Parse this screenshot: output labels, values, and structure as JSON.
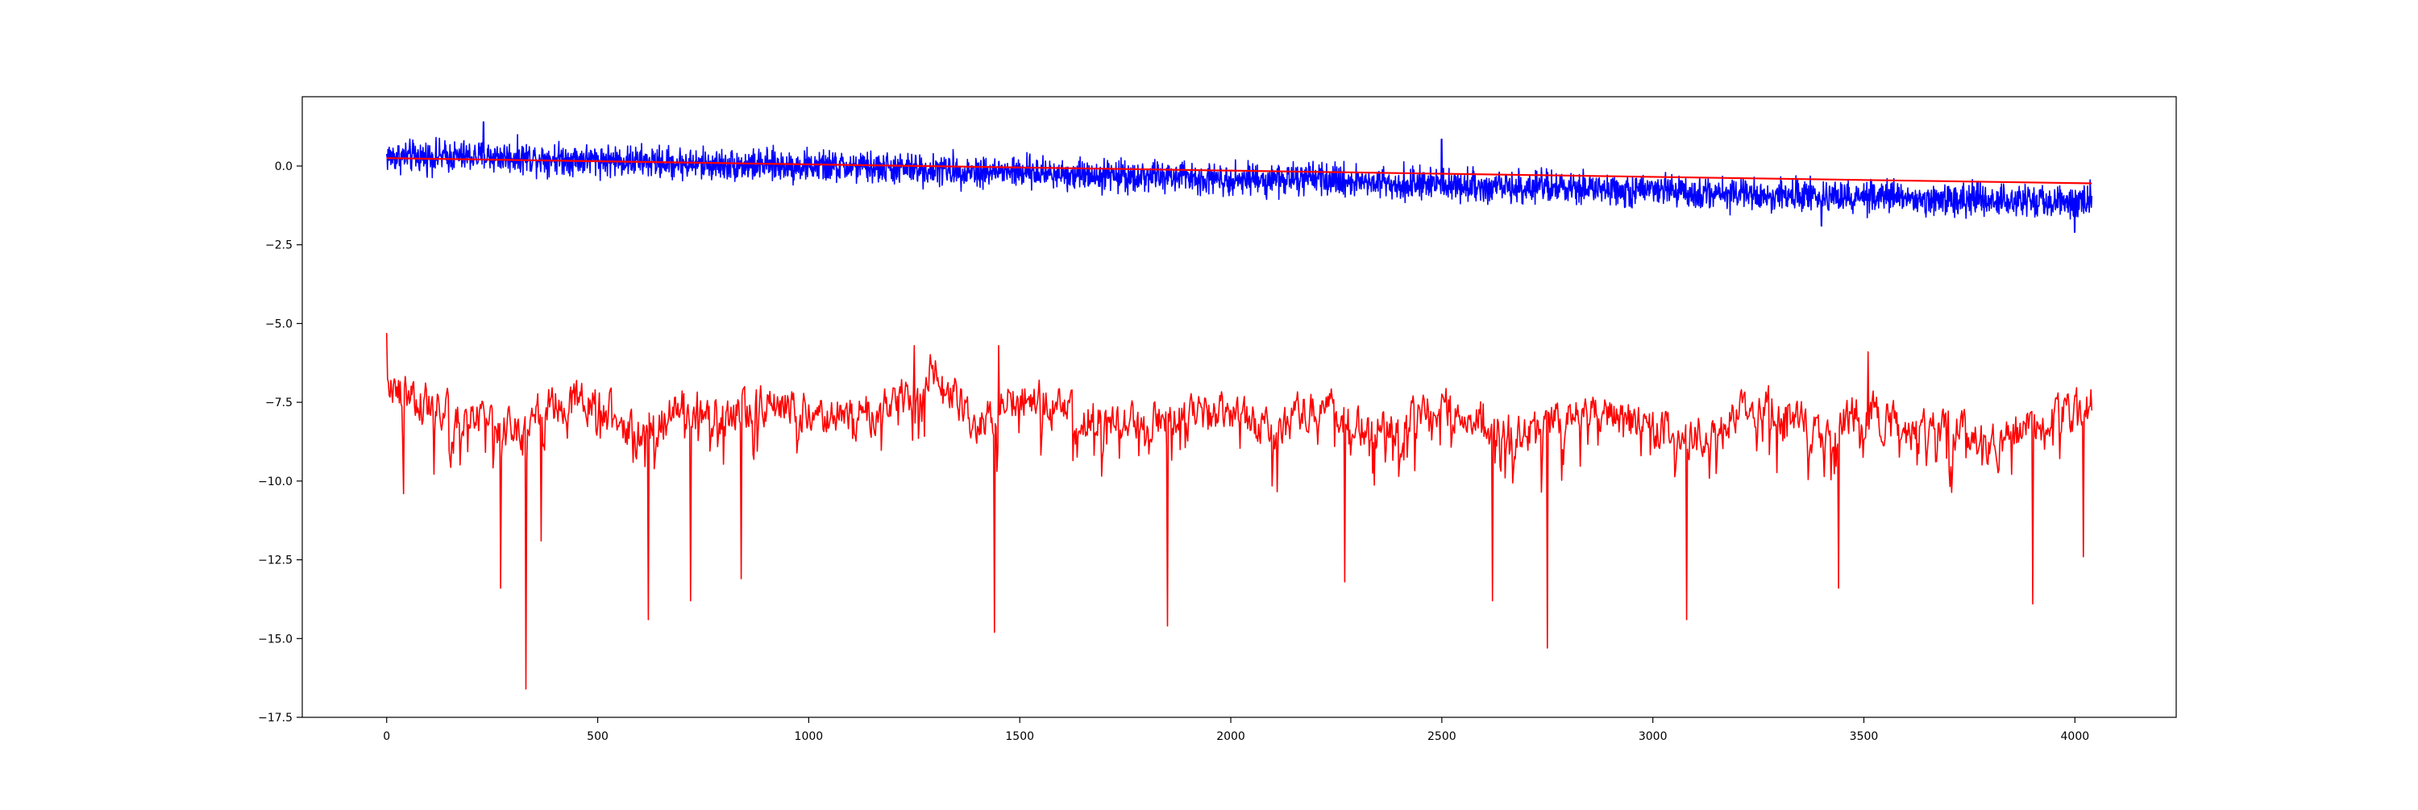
{
  "chart_data": {
    "type": "line",
    "title": "",
    "xlabel": "",
    "ylabel": "",
    "xlim": [
      -200,
      4240
    ],
    "ylim": [
      -17.5,
      2.2
    ],
    "xticks": [
      0,
      500,
      1000,
      1500,
      2000,
      2500,
      3000,
      3500,
      4000
    ],
    "xtick_labels": [
      "0",
      "500",
      "1000",
      "1500",
      "2000",
      "2500",
      "3000",
      "3500",
      "4000"
    ],
    "yticks": [
      0.0,
      -2.5,
      -5.0,
      -7.5,
      -10.0,
      -12.5,
      -15.0,
      -17.5
    ],
    "ytick_labels": [
      "0.0",
      "−2.5",
      "−5.0",
      "−7.5",
      "−10.0",
      "−12.5",
      "−15.0",
      "−17.5"
    ],
    "grid": false,
    "legend": "none",
    "series": [
      {
        "color": "#0000ff",
        "x_range": [
          0,
          4040
        ],
        "x": [
          0,
          250,
          500,
          750,
          1000,
          1250,
          1500,
          1750,
          2000,
          2250,
          2500,
          2750,
          3000,
          3250,
          3500,
          3750,
          4040
        ],
        "y": [
          0.3,
          0.3,
          0.2,
          0.05,
          0.0,
          -0.1,
          -0.2,
          -0.3,
          -0.4,
          -0.45,
          -0.6,
          -0.7,
          -0.8,
          -0.9,
          -1.0,
          -1.05,
          -1.1
        ],
        "spread": 0.45,
        "spikes": [
          {
            "x": 230,
            "y": 1.4
          },
          {
            "x": 2500,
            "y": 0.85
          },
          {
            "x": 3400,
            "y": -1.9
          },
          {
            "x": 4000,
            "y": -2.1
          }
        ]
      },
      {
        "color": "#ff0000",
        "x": [
          0,
          4040
        ],
        "y": [
          0.25,
          -0.55
        ]
      },
      {
        "color": "#ff0000",
        "x_range": [
          0,
          4040
        ],
        "x": [
          0,
          100,
          200,
          300,
          400,
          500,
          600,
          700,
          800,
          900,
          1000,
          1100,
          1200,
          1300,
          1400,
          1500,
          1600,
          1700,
          1800,
          1900,
          2000,
          2100,
          2200,
          2300,
          2400,
          2500,
          2600,
          2700,
          2800,
          2900,
          3000,
          3100,
          3200,
          3300,
          3400,
          3500,
          3600,
          3700,
          3800,
          3900,
          4040
        ],
        "y": [
          -7.0,
          -7.6,
          -7.9,
          -8.4,
          -7.6,
          -7.4,
          -8.6,
          -7.6,
          -7.9,
          -7.5,
          -7.8,
          -8.0,
          -7.6,
          -6.4,
          -8.4,
          -7.1,
          -7.8,
          -8.1,
          -7.9,
          -8.0,
          -7.8,
          -8.4,
          -7.5,
          -8.2,
          -8.1,
          -7.6,
          -7.9,
          -8.6,
          -7.7,
          -8.0,
          -8.3,
          -8.6,
          -7.8,
          -7.5,
          -8.7,
          -7.6,
          -8.5,
          -8.2,
          -8.8,
          -8.3,
          -7.6
        ],
        "spread": 0.9,
        "spikes": [
          {
            "x": 0,
            "y": -5.3
          },
          {
            "x": 40,
            "y": -10.4
          },
          {
            "x": 270,
            "y": -13.4
          },
          {
            "x": 330,
            "y": -16.6
          },
          {
            "x": 365,
            "y": -11.9
          },
          {
            "x": 620,
            "y": -14.4
          },
          {
            "x": 720,
            "y": -13.8
          },
          {
            "x": 840,
            "y": -13.1
          },
          {
            "x": 1250,
            "y": -5.7
          },
          {
            "x": 1440,
            "y": -14.8
          },
          {
            "x": 1450,
            "y": -5.7
          },
          {
            "x": 1850,
            "y": -14.6
          },
          {
            "x": 2270,
            "y": -13.2
          },
          {
            "x": 2620,
            "y": -13.8
          },
          {
            "x": 2750,
            "y": -15.3
          },
          {
            "x": 3080,
            "y": -14.4
          },
          {
            "x": 3440,
            "y": -13.4
          },
          {
            "x": 3510,
            "y": -5.9
          },
          {
            "x": 3900,
            "y": -13.9
          },
          {
            "x": 4020,
            "y": -12.4
          }
        ]
      }
    ]
  }
}
